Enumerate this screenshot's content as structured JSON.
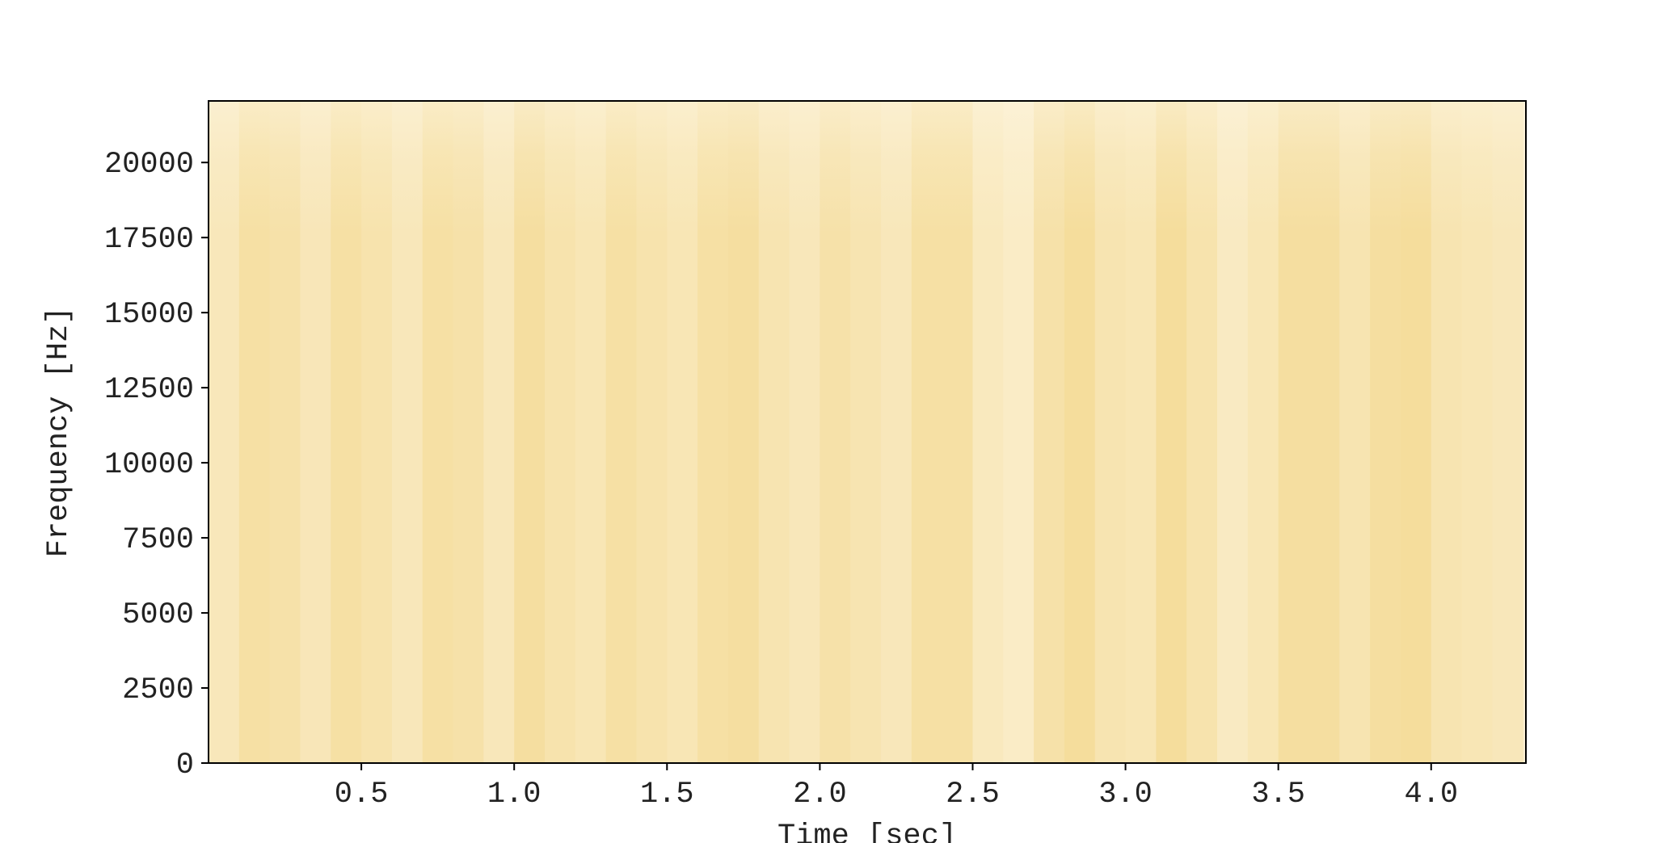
{
  "chart_data": {
    "type": "heatmap",
    "title": "",
    "xlabel": "Time [sec]",
    "ylabel": "Frequency [Hz]",
    "xlim": [
      0.0,
      4.31
    ],
    "ylim": [
      0,
      22050
    ],
    "x_ticks": [
      0.5,
      1.0,
      1.5,
      2.0,
      2.5,
      3.0,
      3.5,
      4.0
    ],
    "x_tick_labels": [
      "0.5",
      "1.0",
      "1.5",
      "2.0",
      "2.5",
      "3.0",
      "3.5",
      "4.0"
    ],
    "y_ticks": [
      0,
      2500,
      5000,
      7500,
      10000,
      12500,
      15000,
      17500,
      20000
    ],
    "y_tick_labels": [
      "0",
      "2500",
      "5000",
      "7500",
      "10000",
      "12500",
      "15000",
      "17500",
      "20000"
    ],
    "colormap": {
      "low": "#fbf0d3",
      "high": "#f1d27e"
    },
    "grid": false,
    "time_bins": [
      0.05,
      0.15,
      0.25,
      0.35,
      0.45,
      0.55,
      0.65,
      0.75,
      0.85,
      0.95,
      1.05,
      1.15,
      1.25,
      1.35,
      1.45,
      1.55,
      1.65,
      1.75,
      1.85,
      1.95,
      2.05,
      2.15,
      2.25,
      2.35,
      2.45,
      2.55,
      2.65,
      2.75,
      2.85,
      2.95,
      3.05,
      3.15,
      3.25,
      3.35,
      3.45,
      3.55,
      3.65,
      3.75,
      3.85,
      3.95,
      4.05,
      4.15,
      4.25
    ],
    "intensity": [
      0.3,
      0.55,
      0.5,
      0.32,
      0.55,
      0.45,
      0.3,
      0.55,
      0.5,
      0.3,
      0.6,
      0.45,
      0.35,
      0.55,
      0.45,
      0.35,
      0.55,
      0.6,
      0.4,
      0.3,
      0.5,
      0.4,
      0.3,
      0.55,
      0.55,
      0.25,
      0.15,
      0.5,
      0.65,
      0.4,
      0.35,
      0.65,
      0.45,
      0.2,
      0.35,
      0.6,
      0.6,
      0.4,
      0.6,
      0.65,
      0.4,
      0.35,
      0.3
    ]
  }
}
